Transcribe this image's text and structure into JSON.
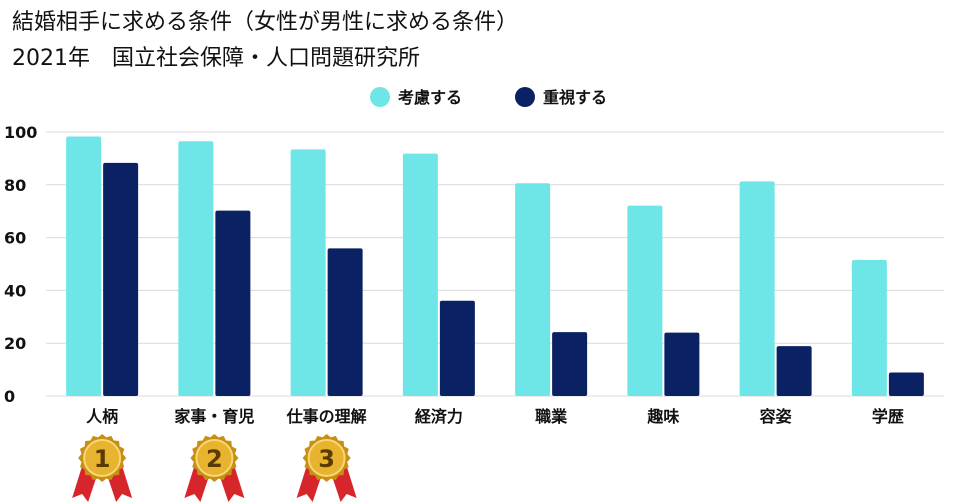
{
  "title_line1": "結婚相手に求める条件（女性が男性に求める条件）",
  "title_line2": "2021年　国立社会保障・人口問題研究所",
  "colors": {
    "series1": "#6ee6e8",
    "series2": "#0a2163",
    "medal": "#e8b32e",
    "ribbon": "#d6262b",
    "grid": "#d9d9d9"
  },
  "medals": [
    {
      "rank": "1",
      "category": "人柄"
    },
    {
      "rank": "2",
      "category": "家事・育児"
    },
    {
      "rank": "3",
      "category": "仕事の理解"
    }
  ],
  "chart_data": {
    "type": "bar",
    "categories": [
      "人柄",
      "家事・育児",
      "仕事の理解",
      "経済力",
      "職業",
      "趣味",
      "容姿",
      "学歴"
    ],
    "series": [
      {
        "name": "考慮する",
        "values": [
          98.3,
          96.5,
          93.4,
          91.8,
          80.6,
          72.1,
          81.3,
          51.5
        ]
      },
      {
        "name": "重視する",
        "values": [
          88.3,
          70.2,
          55.9,
          36.1,
          24.2,
          24.0,
          18.9,
          8.9
        ]
      }
    ],
    "yticks": [
      0,
      20,
      40,
      60,
      80,
      100
    ],
    "ylim": [
      0,
      100
    ],
    "grid": true,
    "legend_position": "top-center"
  }
}
